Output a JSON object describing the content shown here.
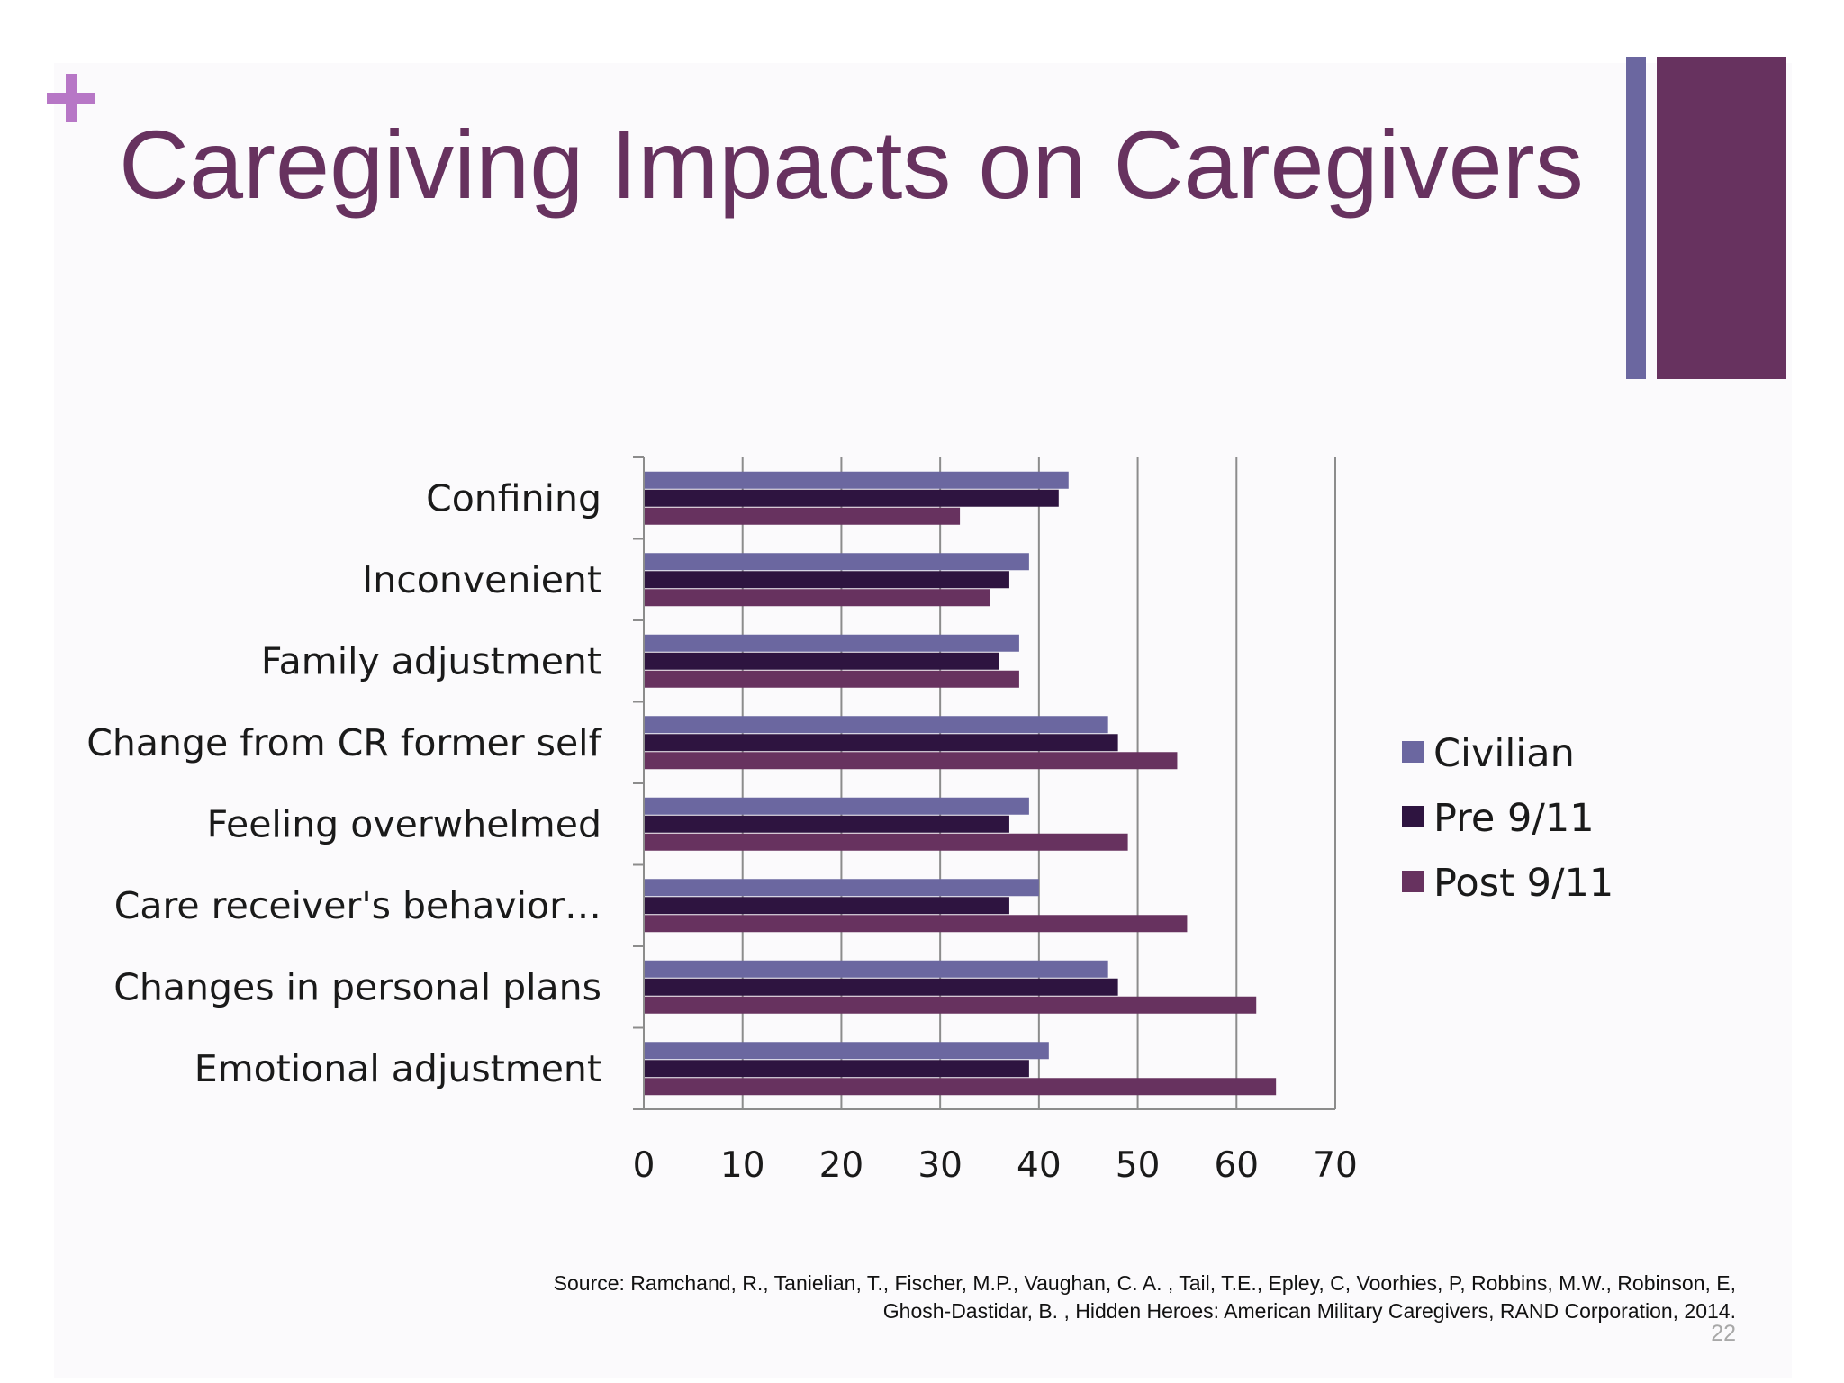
{
  "slide": {
    "title": "Caregiving Impacts on Caregivers",
    "plus_symbol": "+",
    "source_line1": "Source: Ramchand, R., Tanielian, T., Fischer, M.P., Vaughan, C. A. , Tail, T.E., Epley, C, Voorhies, P, Robbins, M.W., Robinson, E,",
    "source_line2": "Ghosh-Dastidar, B. , Hidden Heroes: American Military Caregivers, RAND Corporation, 2014.",
    "page_number": "22"
  },
  "colors": {
    "title": "#67325f",
    "plus": "#b777c6",
    "deco_thin": "#6b67a0",
    "deco_thick": "#67325f",
    "gridline": "#8c8c8c"
  },
  "chart_data": {
    "type": "bar",
    "orientation": "horizontal",
    "categories": [
      "Confining",
      "Inconvenient",
      "Family adjustment",
      "Change from CR former self",
      "Feeling overwhelmed",
      "Care receiver's behavior…",
      "Changes in personal plans",
      "Emotional adjustment"
    ],
    "series": [
      {
        "name": "Civilian",
        "color": "#6b67a0",
        "values": [
          43,
          39,
          38,
          47,
          39,
          40,
          47,
          41
        ]
      },
      {
        "name": "Pre 9/11",
        "color": "#2e1440",
        "values": [
          42,
          37,
          36,
          48,
          37,
          37,
          48,
          39
        ]
      },
      {
        "name": "Post 9/11",
        "color": "#67325f",
        "values": [
          32,
          35,
          38,
          54,
          49,
          55,
          62,
          64
        ]
      }
    ],
    "xlim": [
      0,
      70
    ],
    "xticks": [
      0,
      10,
      20,
      30,
      40,
      50,
      60,
      70
    ],
    "grid": true,
    "legend_position": "right"
  }
}
